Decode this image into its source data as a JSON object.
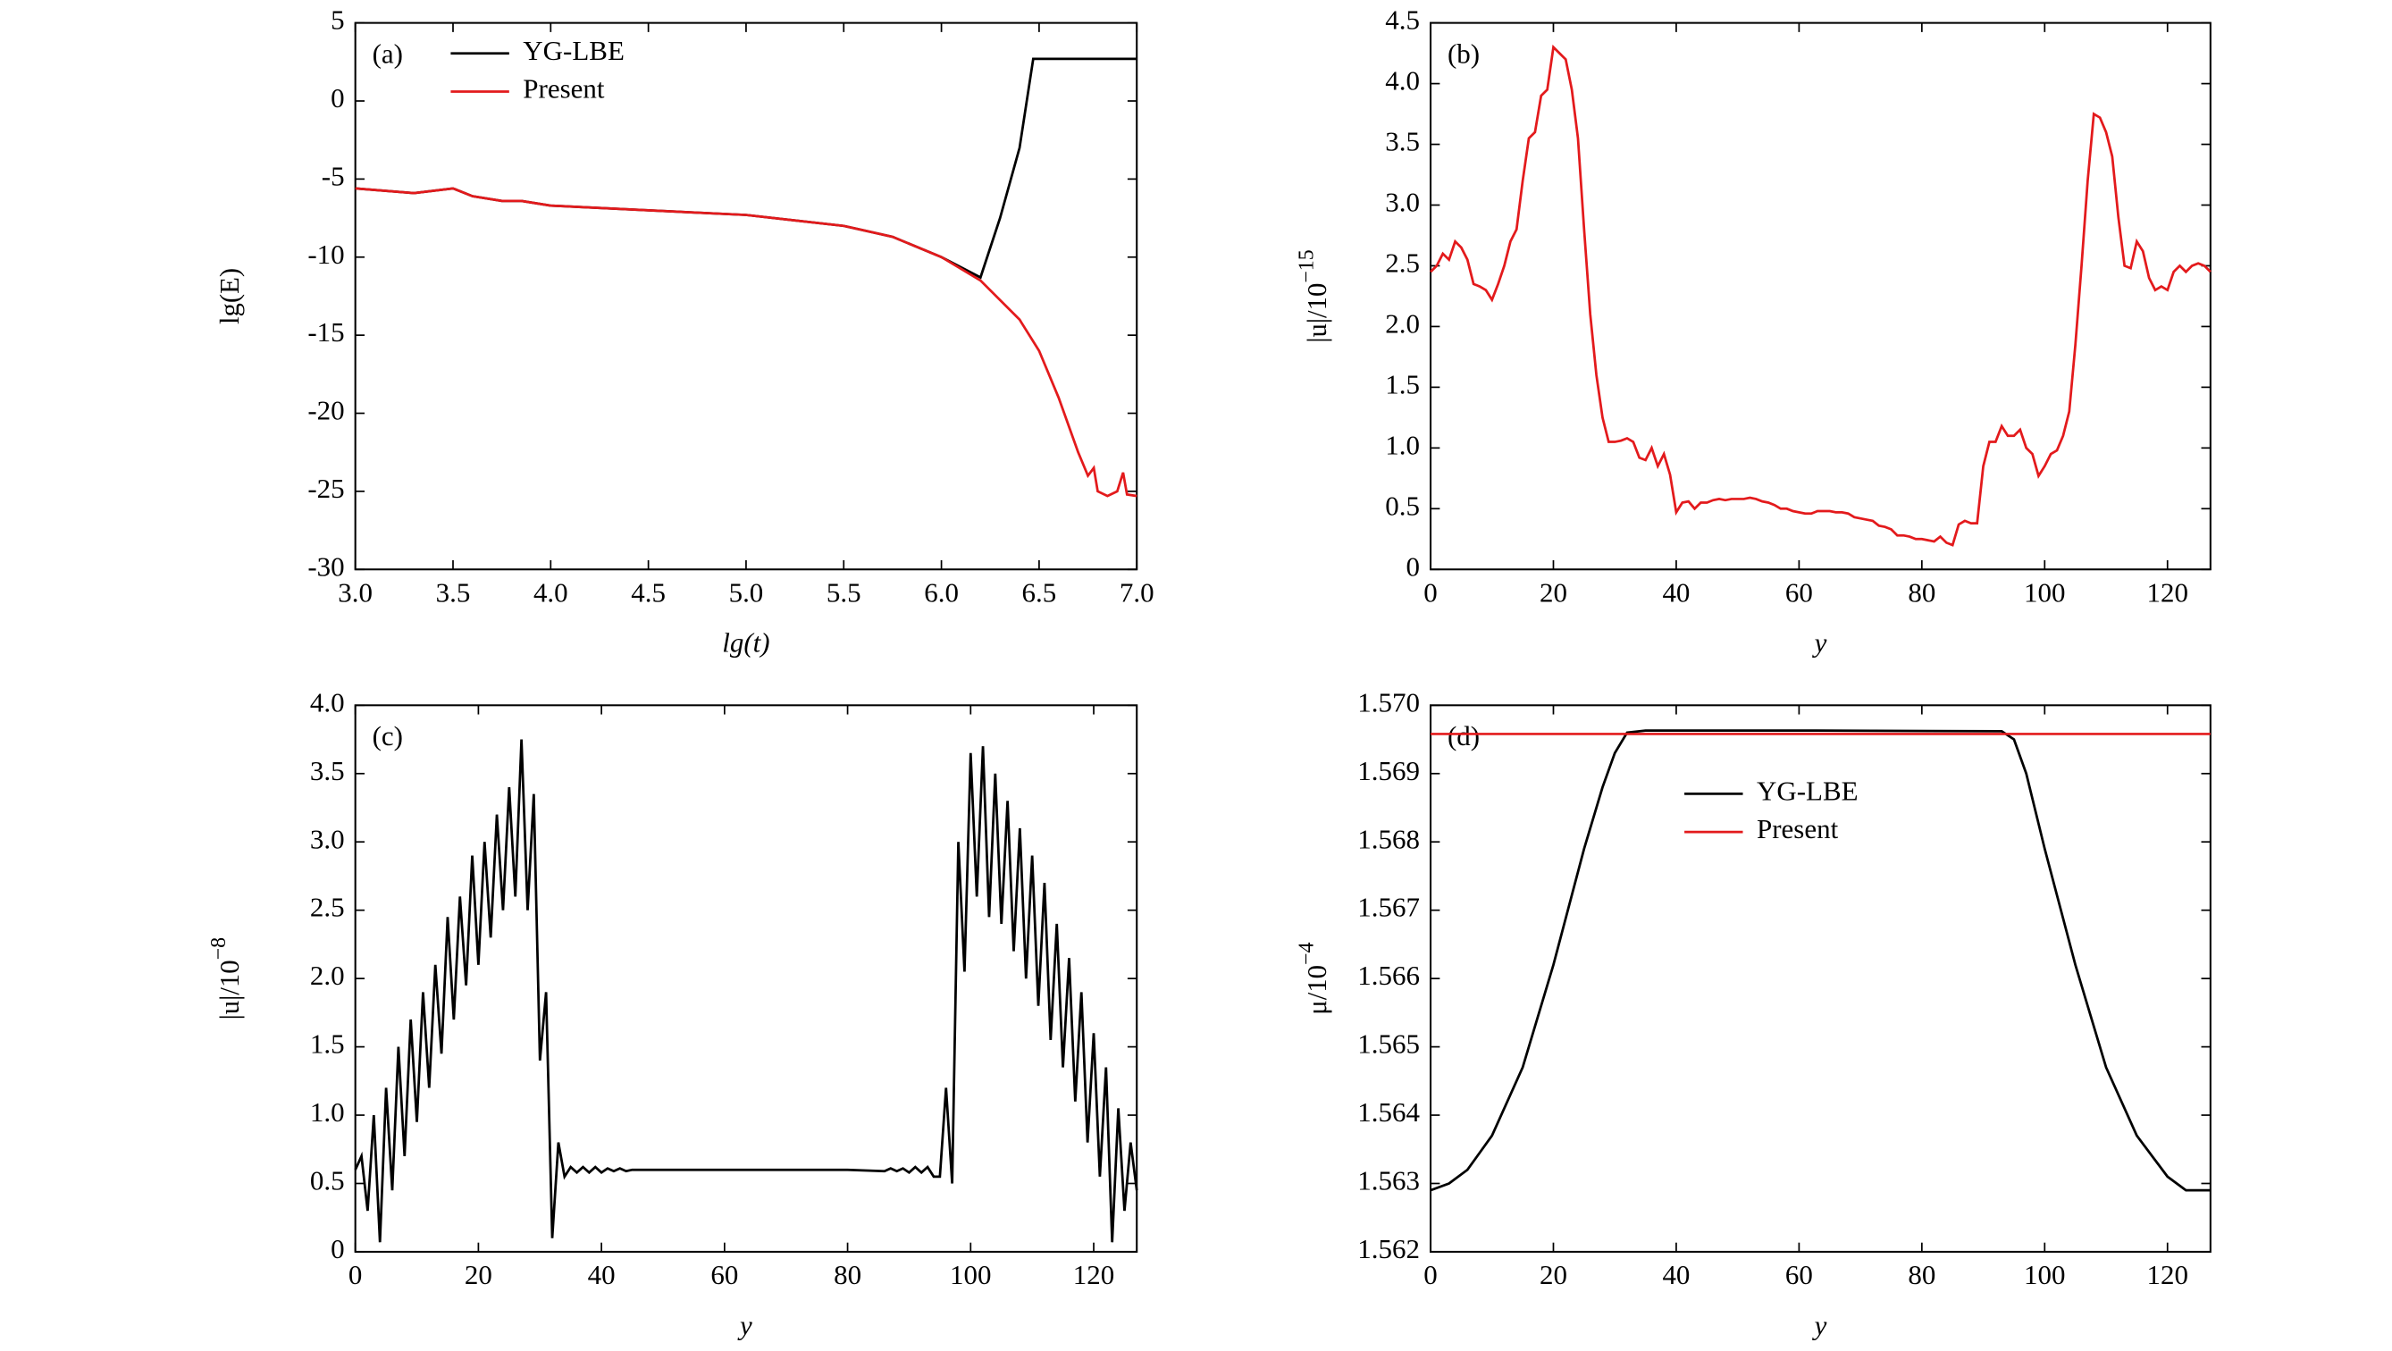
{
  "chart_data": [
    {
      "type": "line",
      "annotation": "(a)",
      "xlabel": "lg(t)",
      "ylabel": "lg(E)",
      "xlim": [
        3,
        7
      ],
      "ylim": [
        -30,
        5
      ],
      "xticks": [
        {
          "value": 3,
          "label": "3.0"
        },
        3.5,
        {
          "value": 4,
          "label": "4.0"
        },
        4.5,
        {
          "value": 5,
          "label": "5.0"
        },
        5.5,
        {
          "value": 6,
          "label": "6.0"
        },
        6.5,
        {
          "value": 7,
          "label": "7.0"
        }
      ],
      "yticks": [
        5,
        0,
        -5,
        -10,
        -15,
        -20,
        -25,
        -30
      ],
      "legend": "upper left",
      "series": [
        {
          "name": "YG-LBE",
          "color": "#000000",
          "x": [
            3.0,
            3.3,
            3.5,
            3.6,
            3.75,
            3.85,
            4.0,
            4.5,
            5.0,
            5.5,
            5.75,
            6.0,
            6.2,
            6.3,
            6.4,
            6.47,
            7.0
          ],
          "values": [
            -5.6,
            -5.9,
            -5.6,
            -6.1,
            -6.4,
            -6.4,
            -6.7,
            -7.0,
            -7.3,
            -8.0,
            -8.7,
            -10.0,
            -11.3,
            -7.5,
            -3.0,
            2.7,
            2.7
          ]
        },
        {
          "name": "Present",
          "color": "#e31a1c",
          "x": [
            3.0,
            3.3,
            3.5,
            3.6,
            3.75,
            3.85,
            4.0,
            4.5,
            5.0,
            5.5,
            5.75,
            6.0,
            6.2,
            6.4,
            6.5,
            6.6,
            6.7,
            6.75,
            6.78,
            6.8,
            6.85,
            6.9,
            6.93,
            6.95,
            7.0
          ],
          "values": [
            -5.6,
            -5.9,
            -5.6,
            -6.1,
            -6.4,
            -6.4,
            -6.7,
            -7.0,
            -7.3,
            -8.0,
            -8.7,
            -10.0,
            -11.5,
            -14.0,
            -16.0,
            -19.0,
            -22.5,
            -24.0,
            -23.5,
            -25.0,
            -25.3,
            -25.0,
            -23.8,
            -25.2,
            -25.3
          ]
        }
      ]
    },
    {
      "type": "line",
      "annotation": "(b)",
      "xlabel": "y",
      "ylabel": "|u|/10",
      "ylabel_exponent": "−15",
      "xlim": [
        0,
        127
      ],
      "ylim": [
        0,
        4.5
      ],
      "xticks": [
        0,
        20,
        40,
        60,
        80,
        100,
        120
      ],
      "yticks": [
        0,
        0.5,
        {
          "value": 1,
          "label": "1.0"
        },
        1.5,
        {
          "value": 2,
          "label": "2.0"
        },
        2.5,
        {
          "value": 3,
          "label": "3.0"
        },
        3.5,
        {
          "value": 4,
          "label": "4.0"
        },
        4.5
      ],
      "series": [
        {
          "color": "#e31a1c",
          "x": [
            0,
            1,
            2,
            3,
            4,
            5,
            6,
            7,
            8,
            9,
            10,
            11,
            12,
            13,
            14,
            15,
            16,
            17,
            18,
            19,
            20,
            21,
            22,
            23,
            24,
            25,
            26,
            27,
            28,
            29,
            30,
            31,
            32,
            33,
            34,
            35,
            36,
            37,
            38,
            39,
            40,
            41,
            42,
            43,
            44,
            45,
            46,
            47,
            48,
            49,
            50,
            51,
            52,
            53,
            54,
            55,
            56,
            57,
            58,
            59,
            60,
            61,
            62,
            63,
            64,
            65,
            66,
            67,
            68,
            69,
            70,
            71,
            72,
            73,
            74,
            75,
            76,
            77,
            78,
            79,
            80,
            81,
            82,
            83,
            84,
            85,
            86,
            87,
            88,
            89,
            90,
            91,
            92,
            93,
            94,
            95,
            96,
            97,
            98,
            99,
            100,
            101,
            102,
            103,
            104,
            105,
            106,
            107,
            108,
            109,
            110,
            111,
            112,
            113,
            114,
            115,
            116,
            117,
            118,
            119,
            120,
            121,
            122,
            123,
            124,
            125,
            126,
            127
          ],
          "values": [
            2.45,
            2.5,
            2.6,
            2.55,
            2.7,
            2.65,
            2.55,
            2.35,
            2.33,
            2.3,
            2.22,
            2.35,
            2.5,
            2.7,
            2.8,
            3.2,
            3.55,
            3.6,
            3.9,
            3.95,
            4.3,
            4.25,
            4.2,
            3.95,
            3.55,
            2.8,
            2.1,
            1.6,
            1.25,
            1.05,
            1.05,
            1.06,
            1.08,
            1.05,
            0.92,
            0.9,
            1.0,
            0.85,
            0.95,
            0.78,
            0.47,
            0.55,
            0.56,
            0.5,
            0.55,
            0.55,
            0.57,
            0.58,
            0.57,
            0.58,
            0.58,
            0.58,
            0.59,
            0.58,
            0.56,
            0.55,
            0.53,
            0.5,
            0.5,
            0.48,
            0.47,
            0.46,
            0.46,
            0.48,
            0.48,
            0.48,
            0.47,
            0.47,
            0.46,
            0.43,
            0.42,
            0.41,
            0.4,
            0.36,
            0.35,
            0.33,
            0.28,
            0.28,
            0.27,
            0.25,
            0.25,
            0.24,
            0.23,
            0.27,
            0.22,
            0.2,
            0.37,
            0.4,
            0.38,
            0.38,
            0.85,
            1.05,
            1.05,
            1.18,
            1.1,
            1.1,
            1.15,
            1.0,
            0.95,
            0.77,
            0.85,
            0.95,
            0.98,
            1.1,
            1.3,
            1.85,
            2.5,
            3.2,
            3.75,
            3.72,
            3.6,
            3.4,
            2.9,
            2.5,
            2.48,
            2.7,
            2.62,
            2.4,
            2.3,
            2.33,
            2.3,
            2.45,
            2.5,
            2.45,
            2.5,
            2.52,
            2.5,
            2.45
          ]
        }
      ]
    },
    {
      "type": "line",
      "annotation": "(c)",
      "xlabel": "y",
      "ylabel": "|u|/10",
      "ylabel_exponent": "−8",
      "xlim": [
        0,
        127
      ],
      "ylim": [
        0,
        4
      ],
      "xticks": [
        0,
        20,
        40,
        60,
        80,
        100,
        120
      ],
      "yticks": [
        0,
        0.5,
        {
          "value": 1,
          "label": "1.0"
        },
        1.5,
        {
          "value": 2,
          "label": "2.0"
        },
        2.5,
        {
          "value": 3,
          "label": "3.0"
        },
        3.5,
        {
          "value": 4,
          "label": "4.0"
        }
      ],
      "series": [
        {
          "color": "#000000",
          "x": [
            0,
            1,
            2,
            3,
            4,
            5,
            6,
            7,
            8,
            9,
            10,
            11,
            12,
            13,
            14,
            15,
            16,
            17,
            18,
            19,
            20,
            21,
            22,
            23,
            24,
            25,
            26,
            27,
            28,
            29,
            30,
            31,
            32,
            33,
            34,
            35,
            36,
            37,
            38,
            39,
            40,
            41,
            42,
            43,
            44,
            45,
            50,
            60,
            70,
            80,
            86,
            87,
            88,
            89,
            90,
            91,
            92,
            93,
            94,
            95,
            96,
            97,
            98,
            99,
            100,
            101,
            102,
            103,
            104,
            105,
            106,
            107,
            108,
            109,
            110,
            111,
            112,
            113,
            114,
            115,
            116,
            117,
            118,
            119,
            120,
            121,
            122,
            123,
            124,
            125,
            126,
            127
          ],
          "values": [
            0.6,
            0.7,
            0.3,
            1.0,
            0.07,
            1.2,
            0.45,
            1.5,
            0.7,
            1.7,
            0.95,
            1.9,
            1.2,
            2.1,
            1.45,
            2.45,
            1.7,
            2.6,
            1.95,
            2.9,
            2.1,
            3.0,
            2.3,
            3.2,
            2.5,
            3.4,
            2.6,
            3.75,
            2.5,
            3.35,
            1.4,
            1.9,
            0.1,
            0.8,
            0.55,
            0.62,
            0.58,
            0.62,
            0.58,
            0.62,
            0.58,
            0.61,
            0.59,
            0.61,
            0.59,
            0.6,
            0.6,
            0.6,
            0.6,
            0.6,
            0.59,
            0.61,
            0.59,
            0.61,
            0.58,
            0.62,
            0.58,
            0.62,
            0.55,
            0.55,
            1.2,
            0.5,
            3.0,
            2.05,
            3.65,
            2.6,
            3.7,
            2.45,
            3.5,
            2.4,
            3.3,
            2.2,
            3.1,
            2.0,
            2.9,
            1.8,
            2.7,
            1.55,
            2.4,
            1.35,
            2.15,
            1.1,
            1.9,
            0.8,
            1.6,
            0.55,
            1.35,
            0.07,
            1.05,
            0.3,
            0.8,
            0.45
          ]
        }
      ]
    },
    {
      "type": "line",
      "annotation": "(d)",
      "xlabel": "y",
      "ylabel": "μ/10",
      "ylabel_exponent": "−4",
      "xlim": [
        0,
        127
      ],
      "ylim": [
        1.562,
        1.57
      ],
      "xticks": [
        0,
        20,
        40,
        60,
        80,
        100,
        120
      ],
      "yticks": [
        1.562,
        1.563,
        1.564,
        1.565,
        1.566,
        1.567,
        1.568,
        1.569,
        {
          "value": 1.57,
          "label": "1.570"
        }
      ],
      "legend": "upper center",
      "series": [
        {
          "name": "YG-LBE",
          "color": "#000000",
          "x": [
            0,
            3,
            6,
            10,
            15,
            20,
            25,
            28,
            30,
            32,
            35,
            60,
            93,
            95,
            97,
            100,
            105,
            110,
            115,
            120,
            123,
            127
          ],
          "values": [
            1.5629,
            1.563,
            1.5632,
            1.5637,
            1.5647,
            1.5662,
            1.5679,
            1.5688,
            1.5693,
            1.5696,
            1.56963,
            1.56963,
            1.56962,
            1.5695,
            1.569,
            1.5679,
            1.5662,
            1.5647,
            1.5637,
            1.5631,
            1.5629,
            1.5629
          ]
        },
        {
          "name": "Present",
          "color": "#e31a1c",
          "x": [
            0,
            127
          ],
          "values": [
            1.56958,
            1.56958
          ]
        }
      ]
    }
  ]
}
